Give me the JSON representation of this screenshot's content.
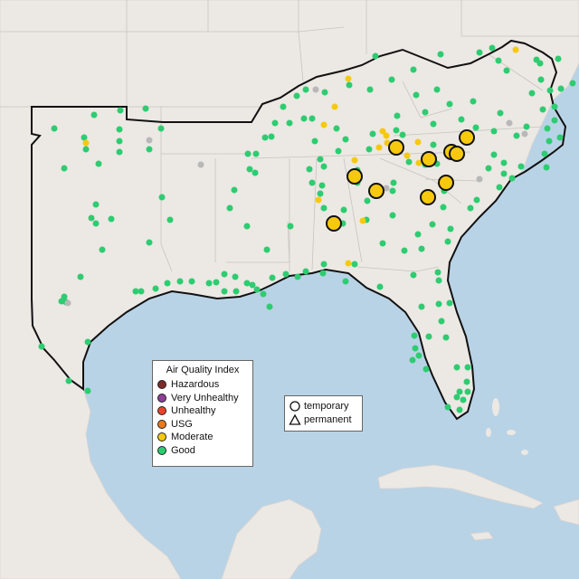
{
  "map": {
    "aqi_legend": {
      "title": "Air Quality Index",
      "items": [
        {
          "label": "Hazardous",
          "color": "#7e2a2a"
        },
        {
          "label": "Very Unhealthy",
          "color": "#8f3f97"
        },
        {
          "label": "Unhealthy",
          "color": "#e8432e"
        },
        {
          "label": "USG",
          "color": "#e97a1c"
        },
        {
          "label": "Moderate",
          "color": "#f6c90e"
        },
        {
          "label": "Good",
          "color": "#2ecc71"
        }
      ]
    },
    "type_legend": {
      "temporary": "temporary",
      "permanent": "permanent"
    },
    "colors": {
      "ocean": "#b9d3e6",
      "land": "#ece8e4",
      "border": "#111111",
      "good": "#2ecc71",
      "moderate": "#f6c90e",
      "nodata": "#b8b8b8"
    }
  }
}
